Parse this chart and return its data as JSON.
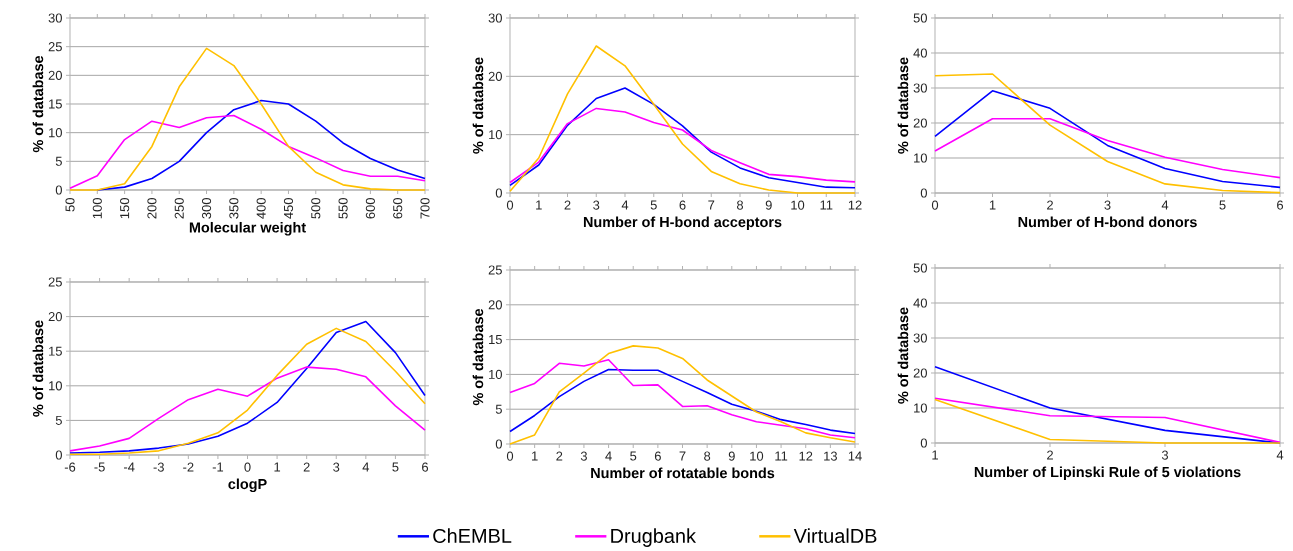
{
  "chart_data": [
    {
      "type": "line",
      "xlabel": "Molecular weight",
      "ylabel": "% of database",
      "categories": [
        "50",
        "100",
        "150",
        "200",
        "250",
        "300",
        "350",
        "400",
        "450",
        "500",
        "550",
        "600",
        "650",
        "700"
      ],
      "ylim": [
        0,
        30
      ],
      "yticks": [
        0,
        5,
        10,
        15,
        20,
        25,
        30
      ],
      "grid": "y",
      "series": [
        {
          "color": "#0000ff",
          "values": [
            null,
            0,
            0.5,
            2,
            5,
            10,
            14,
            15.6,
            15,
            12,
            8.2,
            5.5,
            3.5,
            2
          ]
        },
        {
          "color": "#ff00ff",
          "values": [
            0.3,
            2.5,
            8.8,
            12,
            10.9,
            12.6,
            13,
            10.6,
            7.6,
            5.6,
            3.4,
            2.4,
            2.4,
            1.6
          ]
        },
        {
          "color": "#ffc000",
          "values": [
            0,
            0,
            1.1,
            7.6,
            18,
            24.7,
            21.7,
            15,
            7.6,
            3.1,
            0.9,
            0.2,
            0,
            0
          ]
        }
      ]
    },
    {
      "type": "line",
      "xlabel": "Number of H-bond acceptors",
      "ylabel": "% of database",
      "categories": [
        "0",
        "1",
        "2",
        "3",
        "4",
        "5",
        "6",
        "7",
        "8",
        "9",
        "10",
        "11",
        "12"
      ],
      "ylim": [
        0,
        30
      ],
      "yticks": [
        0,
        10,
        20,
        30
      ],
      "grid": "y",
      "series": [
        {
          "color": "#0000ff",
          "values": [
            1.3,
            4.8,
            11.6,
            16.2,
            18,
            15.2,
            11.5,
            7,
            4.3,
            2.6,
            1.8,
            1,
            0.9
          ]
        },
        {
          "color": "#ff00ff",
          "values": [
            1.8,
            5.3,
            11.9,
            14.5,
            13.9,
            12.1,
            10.8,
            7.3,
            5.2,
            3.2,
            2.8,
            2.2,
            1.9
          ]
        },
        {
          "color": "#ffc000",
          "values": [
            0.3,
            6,
            17,
            25.2,
            21.8,
            15.2,
            8.4,
            3.7,
            1.6,
            0.5,
            0,
            0,
            0
          ]
        }
      ]
    },
    {
      "type": "line",
      "xlabel": "Number of H-bond donors",
      "ylabel": "% of database",
      "categories": [
        "0",
        "1",
        "2",
        "3",
        "4",
        "5",
        "6"
      ],
      "ylim": [
        0,
        50
      ],
      "yticks": [
        0,
        10,
        20,
        30,
        40,
        50
      ],
      "grid": "y",
      "series": [
        {
          "color": "#0000ff",
          "values": [
            16.2,
            29.2,
            24.2,
            13.6,
            7,
            3.3,
            1.6
          ]
        },
        {
          "color": "#ff00ff",
          "values": [
            12,
            21.2,
            21.2,
            15,
            10.2,
            6.7,
            4.4
          ]
        },
        {
          "color": "#ffc000",
          "values": [
            33.5,
            34,
            19.4,
            9,
            2.6,
            0.7,
            0.1
          ]
        }
      ]
    },
    {
      "type": "line",
      "xlabel": "clogP",
      "ylabel": "% of database",
      "categories": [
        "-6",
        "-5",
        "-4",
        "-3",
        "-2",
        "-1",
        "0",
        "1",
        "2",
        "3",
        "4",
        "5",
        "6"
      ],
      "ylim": [
        0,
        25
      ],
      "yticks": [
        0,
        5,
        10,
        15,
        20,
        25
      ],
      "grid": "y",
      "legend": "bottom",
      "series": [
        {
          "name": "ChEMBL",
          "color": "#0000ff",
          "values": [
            0.3,
            0.4,
            0.6,
            1,
            1.6,
            2.7,
            4.6,
            7.6,
            12.5,
            17.7,
            19.3,
            14.8,
            8.6
          ]
        },
        {
          "name": "Drugbank",
          "color": "#ff00ff",
          "values": [
            0.6,
            1.3,
            2.4,
            5.3,
            8,
            9.5,
            8.5,
            11.1,
            12.7,
            12.4,
            11.3,
            7.1,
            3.6
          ]
        },
        {
          "name": "VirtualDB",
          "color": "#ffc000",
          "values": [
            0.1,
            0.1,
            0.3,
            0.6,
            1.7,
            3.2,
            6.5,
            11.5,
            16,
            18.3,
            16.4,
            12.1,
            7.4
          ]
        }
      ]
    },
    {
      "type": "line",
      "xlabel": "Number of rotatable bonds",
      "ylabel": "% of database",
      "categories": [
        "0",
        "1",
        "2",
        "3",
        "4",
        "5",
        "6",
        "7",
        "8",
        "9",
        "10",
        "11",
        "12",
        "13",
        "14"
      ],
      "ylim": [
        0,
        25
      ],
      "yticks": [
        0,
        5,
        10,
        15,
        20,
        25
      ],
      "grid": "y",
      "series": [
        {
          "color": "#0000ff",
          "values": [
            1.8,
            4.1,
            6.8,
            9,
            10.7,
            10.6,
            10.6,
            9,
            7.4,
            5.7,
            4.7,
            3.5,
            2.8,
            2,
            1.5
          ]
        },
        {
          "color": "#ff00ff",
          "values": [
            7.4,
            8.7,
            11.6,
            11.2,
            12.1,
            8.4,
            8.5,
            5.4,
            5.5,
            4.2,
            3.2,
            2.7,
            2.2,
            1.3,
            0.9
          ]
        },
        {
          "color": "#ffc000",
          "values": [
            0,
            1.3,
            7.5,
            10.2,
            13,
            14.1,
            13.8,
            12.3,
            9.2,
            6.9,
            4.6,
            3.2,
            1.6,
            0.9,
            0.3
          ]
        }
      ]
    },
    {
      "type": "line",
      "xlabel": "Number of Lipinski Rule of 5 violations",
      "ylabel": "% of database",
      "categories": [
        "1",
        "2",
        "3",
        "4"
      ],
      "ylim": [
        0,
        50
      ],
      "yticks": [
        0,
        10,
        20,
        30,
        40,
        50
      ],
      "grid": "y",
      "series": [
        {
          "color": "#0000ff",
          "values": [
            21.8,
            10,
            3.6,
            0
          ]
        },
        {
          "color": "#ff00ff",
          "values": [
            12.8,
            7.8,
            7.3,
            0.2
          ]
        },
        {
          "color": "#ffc000",
          "values": [
            12.4,
            1,
            0,
            0
          ]
        }
      ]
    }
  ]
}
